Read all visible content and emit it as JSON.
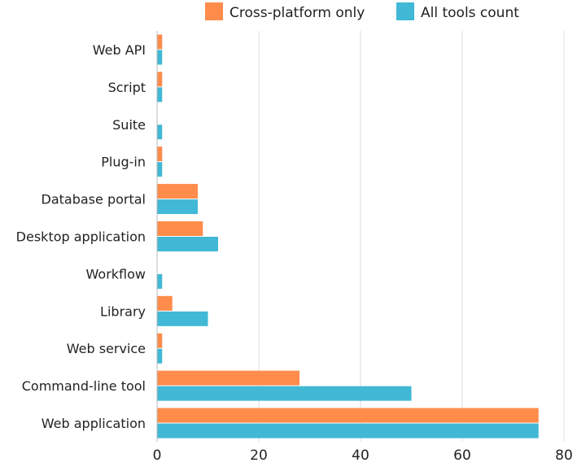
{
  "chart_data": {
    "type": "bar",
    "orientation": "horizontal",
    "title": "",
    "xlabel": "",
    "ylabel": "",
    "categories": [
      "Web API",
      "Script",
      "Suite",
      "Plug-in",
      "Database portal",
      "Desktop application",
      "Workflow",
      "Library",
      "Web service",
      "Command-line tool",
      "Web application"
    ],
    "series": [
      {
        "name": "Cross-platform only",
        "color": "#FF8C4B",
        "values": [
          1,
          1,
          0,
          1,
          8,
          9,
          0,
          3,
          1,
          28,
          75
        ]
      },
      {
        "name": "All tools count",
        "color": "#41B8D5",
        "values": [
          1,
          1,
          1,
          1,
          8,
          12,
          1,
          10,
          1,
          50,
          75
        ]
      }
    ],
    "xlim": [
      0,
      80
    ],
    "xticks": [
      "0",
      "20",
      "40",
      "60",
      "80"
    ],
    "grid": true,
    "legend_position": "top"
  }
}
